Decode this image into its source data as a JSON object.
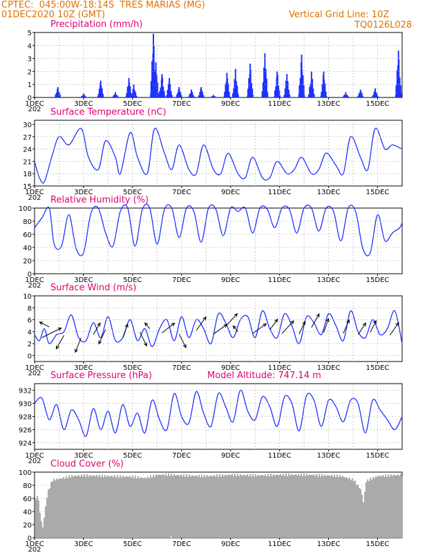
{
  "header": {
    "line1": "CPTEC:  045:00W-18:14S  TRES MARIAS (MG)",
    "line2": "01DEC2020 10Z (GMT)",
    "vgrid": "Vertical Grid Line: 10Z",
    "code": "TQ0126L028"
  },
  "colors": {
    "header": "#e07000",
    "title": "#e0006e",
    "line": "#1e32ff",
    "cloud": "#aaaaaa",
    "grid": "#aaaaaa"
  },
  "x_labels": [
    "1DEC",
    "3DEC",
    "5DEC",
    "7DEC",
    "9DEC",
    "11DEC",
    "13DEC",
    "15DEC"
  ],
  "year_fragment": "202",
  "chart_data": [
    {
      "id": "precip",
      "type": "bar",
      "title": "Precipitation (mm/h)",
      "ylim": [
        0,
        5
      ],
      "yticks": [
        0,
        1,
        2,
        3,
        4,
        5
      ],
      "days": [
        1,
        16
      ],
      "grid": true,
      "peaks": [
        [
          1.95,
          0.8
        ],
        [
          3.0,
          0.3
        ],
        [
          3.7,
          1.3
        ],
        [
          4.3,
          0.4
        ],
        [
          4.85,
          1.5
        ],
        [
          5.05,
          1.0
        ],
        [
          5.85,
          4.9
        ],
        [
          5.95,
          2.7
        ],
        [
          6.2,
          1.8
        ],
        [
          6.5,
          1.5
        ],
        [
          6.9,
          0.8
        ],
        [
          7.4,
          0.6
        ],
        [
          7.8,
          0.8
        ],
        [
          8.3,
          0.2
        ],
        [
          8.85,
          1.9
        ],
        [
          9.2,
          2.2
        ],
        [
          9.8,
          2.6
        ],
        [
          10.4,
          3.4
        ],
        [
          10.9,
          2.0
        ],
        [
          11.3,
          1.8
        ],
        [
          11.9,
          3.3
        ],
        [
          12.3,
          2.0
        ],
        [
          12.8,
          2.0
        ],
        [
          13.7,
          0.4
        ],
        [
          14.3,
          0.6
        ],
        [
          14.9,
          0.7
        ],
        [
          15.85,
          3.6
        ]
      ]
    },
    {
      "id": "temp",
      "type": "line",
      "title": "Surface Temperature (nC)",
      "ylim": [
        15,
        31
      ],
      "yticks": [
        15,
        18,
        21,
        24,
        27,
        30
      ],
      "days": [
        1,
        16
      ],
      "grid": true,
      "x": [
        1.0,
        1.2,
        1.4,
        1.7,
        2.0,
        2.4,
        2.9,
        3.2,
        3.6,
        3.9,
        4.3,
        4.5,
        4.9,
        5.2,
        5.6,
        5.9,
        6.3,
        6.6,
        6.9,
        7.3,
        7.6,
        7.9,
        8.3,
        8.6,
        8.9,
        9.3,
        9.6,
        9.9,
        10.3,
        10.6,
        10.9,
        11.3,
        11.6,
        11.9,
        12.3,
        12.6,
        12.9,
        13.3,
        13.6,
        13.9,
        14.3,
        14.6,
        14.9,
        15.3,
        15.6,
        16.0
      ],
      "values": [
        21,
        17,
        16,
        22,
        27,
        25,
        29,
        22,
        19,
        26,
        22,
        18,
        28,
        22,
        18,
        29,
        23,
        19,
        25,
        19,
        18,
        25,
        19,
        18,
        23,
        18,
        17,
        22,
        17,
        17,
        21,
        18,
        19,
        22,
        18,
        19,
        23,
        20,
        18,
        27,
        22,
        19,
        29,
        24,
        25,
        24
      ]
    },
    {
      "id": "rh",
      "type": "line",
      "title": "Relative Humidity (%)",
      "ylim": [
        0,
        100
      ],
      "yticks": [
        0,
        20,
        40,
        60,
        80,
        100
      ],
      "days": [
        1,
        16
      ],
      "grid": true,
      "x": [
        1.0,
        1.3,
        1.6,
        1.8,
        2.1,
        2.4,
        2.7,
        3.0,
        3.3,
        3.6,
        3.9,
        4.2,
        4.5,
        4.8,
        5.1,
        5.4,
        5.7,
        6.0,
        6.3,
        6.6,
        6.9,
        7.2,
        7.5,
        7.8,
        8.1,
        8.4,
        8.7,
        9.0,
        9.3,
        9.6,
        9.9,
        10.2,
        10.5,
        10.8,
        11.1,
        11.4,
        11.7,
        12.0,
        12.3,
        12.6,
        12.9,
        13.2,
        13.5,
        13.8,
        14.1,
        14.4,
        14.7,
        15.0,
        15.3,
        15.6,
        15.9,
        16.0
      ],
      "values": [
        70,
        85,
        100,
        45,
        42,
        90,
        38,
        32,
        92,
        100,
        62,
        42,
        95,
        100,
        42,
        98,
        100,
        45,
        98,
        100,
        55,
        100,
        95,
        48,
        100,
        98,
        58,
        100,
        95,
        100,
        62,
        100,
        98,
        70,
        100,
        98,
        62,
        100,
        100,
        65,
        100,
        95,
        50,
        100,
        95,
        38,
        32,
        90,
        50,
        62,
        70,
        78
      ]
    },
    {
      "id": "wind",
      "type": "line",
      "title": "Surface Wind (m/s)",
      "ylim": [
        -1,
        10
      ],
      "yticks": [
        0,
        2,
        4,
        6,
        8,
        10
      ],
      "days": [
        1,
        16
      ],
      "grid": true,
      "x": [
        1.0,
        1.2,
        1.4,
        1.6,
        1.9,
        2.2,
        2.5,
        2.8,
        3.1,
        3.4,
        3.7,
        4.0,
        4.3,
        4.6,
        4.9,
        5.2,
        5.5,
        5.8,
        6.1,
        6.4,
        6.7,
        7.0,
        7.3,
        7.6,
        7.9,
        8.2,
        8.5,
        8.8,
        9.1,
        9.4,
        9.7,
        10.0,
        10.3,
        10.6,
        10.9,
        11.2,
        11.5,
        11.8,
        12.1,
        12.4,
        12.7,
        13.0,
        13.3,
        13.6,
        13.9,
        14.2,
        14.5,
        14.8,
        15.1,
        15.4,
        15.7,
        16.0
      ],
      "values": [
        3.5,
        2.5,
        4.5,
        2.0,
        3.5,
        4.0,
        6.8,
        3.0,
        2.5,
        5.5,
        3.0,
        6.5,
        2.5,
        3.0,
        6.0,
        2.5,
        4.5,
        1.5,
        4.5,
        6.0,
        2.5,
        6.5,
        3.0,
        6.0,
        4.5,
        2.0,
        7.0,
        5.5,
        3.0,
        6.0,
        6.5,
        3.0,
        7.5,
        4.5,
        3.0,
        7.0,
        5.0,
        2.0,
        6.5,
        5.5,
        3.5,
        7.0,
        5.0,
        2.5,
        7.5,
        4.0,
        3.0,
        6.0,
        3.5,
        4.5,
        7.5,
        2.0
      ],
      "arrows": [
        [
          1.3,
          3.0,
          2.0,
          1.0
        ],
        [
          1.6,
          4.8,
          -1.0,
          0.5
        ],
        [
          2.2,
          3.4,
          -0.8,
          -1.4
        ],
        [
          2.9,
          3.0,
          -0.6,
          -1.5
        ],
        [
          3.4,
          3.5,
          0.7,
          1.2
        ],
        [
          3.9,
          4.4,
          -0.7,
          -1.5
        ],
        [
          4.6,
          3.0,
          0.5,
          1.4
        ],
        [
          5.3,
          3.9,
          0.7,
          -1.4
        ],
        [
          5.7,
          4.5,
          -0.5,
          0.6
        ],
        [
          6.2,
          3.8,
          1.3,
          1.0
        ],
        [
          6.9,
          3.6,
          0.7,
          -1.4
        ],
        [
          7.6,
          4.2,
          1.0,
          1.4
        ],
        [
          8.3,
          3.6,
          1.4,
          1.0
        ],
        [
          8.8,
          4.9,
          1.2,
          1.3
        ],
        [
          9.3,
          4.0,
          -0.5,
          0.6
        ],
        [
          9.9,
          3.7,
          1.4,
          1.0
        ],
        [
          10.6,
          4.3,
          0.8,
          1.1
        ],
        [
          11.1,
          3.7,
          1.2,
          1.3
        ],
        [
          11.8,
          3.6,
          0.6,
          1.3
        ],
        [
          12.3,
          4.7,
          0.8,
          1.4
        ],
        [
          12.8,
          3.9,
          0.5,
          1.4
        ],
        [
          13.6,
          3.7,
          0.6,
          1.4
        ],
        [
          14.2,
          3.5,
          0.8,
          1.2
        ],
        [
          14.7,
          3.9,
          0.6,
          1.2
        ],
        [
          15.5,
          3.4,
          0.9,
          1.3
        ]
      ]
    },
    {
      "id": "press",
      "type": "line",
      "title": "Surface Pressure (hPa)",
      "annotation": "Model Altitude: 747.14  m",
      "ylim": [
        923,
        933
      ],
      "yticks": [
        924,
        926,
        928,
        930,
        932
      ],
      "days": [
        1,
        16
      ],
      "grid": true,
      "x": [
        1.0,
        1.3,
        1.6,
        1.9,
        2.2,
        2.5,
        2.8,
        3.1,
        3.4,
        3.7,
        4.0,
        4.3,
        4.6,
        4.9,
        5.2,
        5.5,
        5.8,
        6.1,
        6.4,
        6.7,
        7.0,
        7.3,
        7.6,
        7.9,
        8.2,
        8.5,
        8.8,
        9.1,
        9.4,
        9.7,
        10.0,
        10.3,
        10.6,
        10.9,
        11.2,
        11.5,
        11.8,
        12.1,
        12.4,
        12.7,
        13.0,
        13.3,
        13.6,
        13.9,
        14.2,
        14.5,
        14.8,
        15.1,
        15.4,
        15.7,
        16.0
      ],
      "values": [
        930,
        930.8,
        927.5,
        929.8,
        926,
        929,
        927.5,
        925,
        929.2,
        926,
        928.8,
        925.5,
        929.8,
        926.5,
        928.5,
        925.5,
        930.5,
        927.5,
        926,
        931.5,
        928,
        927,
        931.8,
        928.5,
        926.5,
        931.5,
        929.5,
        927.2,
        932,
        928.8,
        927.5,
        931,
        929.5,
        926.5,
        931,
        930,
        925.8,
        931.2,
        930.5,
        926.5,
        930.5,
        929.5,
        927.2,
        930.5,
        930,
        925.5,
        930.5,
        929,
        927.5,
        926,
        928
      ]
    },
    {
      "id": "cloud",
      "type": "area",
      "title": "Cloud Cover (%)",
      "ylim": [
        0,
        100
      ],
      "yticks": [
        0,
        20,
        40,
        60,
        80,
        100
      ],
      "days": [
        1,
        16
      ],
      "grid": true,
      "x": [
        1.0,
        1.1,
        1.2,
        1.3,
        1.5,
        1.7,
        2.0,
        2.5,
        3.0,
        4.0,
        5.0,
        5.5,
        6.0,
        6.5,
        7.0,
        8.0,
        9.0,
        10.0,
        11.0,
        12.0,
        13.0,
        13.5,
        14.0,
        14.3,
        14.4,
        14.5,
        14.7,
        15.0,
        16.0
      ],
      "values": [
        55,
        70,
        40,
        15,
        70,
        90,
        92,
        96,
        97,
        96,
        95,
        93,
        98,
        98,
        97,
        96,
        98,
        97,
        98,
        98,
        97,
        96,
        90,
        75,
        55,
        88,
        92,
        96,
        98
      ],
      "gaps": [
        6.55,
        1.95
      ]
    }
  ]
}
